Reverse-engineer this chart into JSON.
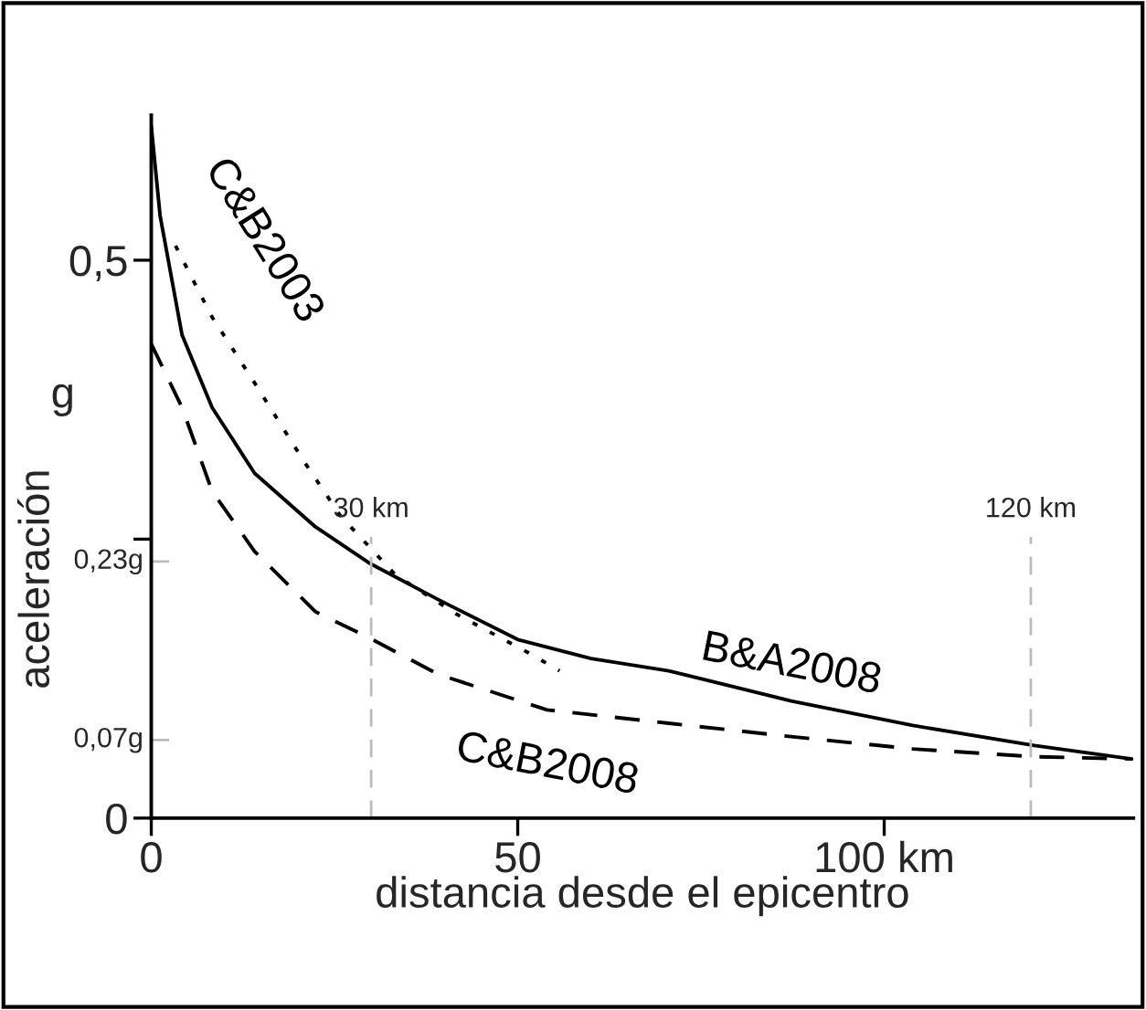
{
  "chart_data": {
    "type": "line",
    "xlabel": "distancia desde el epicentro",
    "ylabel": "aceleración",
    "annotations": [
      "g"
    ],
    "xlim": [
      0,
      134
    ],
    "ylim": [
      0,
      0.63
    ],
    "xticks": [
      0,
      50,
      {
        "value": 100,
        "label": "100 km"
      }
    ],
    "yticks": [
      0,
      {
        "value": 0.25,
        "label": null
      },
      {
        "value": 0.5,
        "label": "0,5"
      }
    ],
    "grid": false,
    "marker": "none",
    "ref_lines": [
      {
        "axis": "y",
        "value": 0.23,
        "label": "0,23g",
        "color": "#bbbbbb",
        "line_style": "dashed"
      },
      {
        "axis": "y",
        "value": 0.07,
        "label": "0,07g",
        "color": "#bbbbbb",
        "line_style": "dashed"
      },
      {
        "axis": "x",
        "value": 30,
        "label": "30 km",
        "color": "#bbbbbb",
        "line_style": "dashed"
      },
      {
        "axis": "x",
        "value": 120,
        "label": "120 km",
        "color": "#bbbbbb",
        "line_style": "dashed"
      }
    ],
    "series": [
      {
        "name": "B&A2008",
        "color": "#000000",
        "line_style": "solid",
        "x": [
          0,
          1.2,
          4.2,
          8.3,
          14.1,
          22.4,
          29.9,
          39.1,
          50,
          60,
          70.6,
          87.3,
          103.9,
          120.5,
          133.8
        ],
        "values": [
          0.62,
          0.54,
          0.433,
          0.368,
          0.309,
          0.261,
          0.228,
          0.196,
          0.16,
          0.143,
          0.132,
          0.105,
          0.083,
          0.065,
          0.053
        ]
      },
      {
        "name": "C&B2008",
        "color": "#000000",
        "line_style": "dashed",
        "x": [
          0,
          4.2,
          8.3,
          14.1,
          22.4,
          29.9,
          39.1,
          54,
          70.6,
          87.3,
          103.9,
          120.5,
          133.8
        ],
        "values": [
          0.425,
          0.368,
          0.293,
          0.239,
          0.185,
          0.161,
          0.129,
          0.097,
          0.085,
          0.073,
          0.062,
          0.055,
          0.053
        ]
      },
      {
        "name": "C&B2003",
        "color": "#000000",
        "line_style": "dotted",
        "x": [
          3.3,
          8.3,
          14.1,
          20.8,
          25.8,
          33.3,
          41.6,
          51.5,
          55.7
        ],
        "values": [
          0.513,
          0.449,
          0.39,
          0.32,
          0.271,
          0.218,
          0.183,
          0.148,
          0.132
        ]
      }
    ]
  }
}
